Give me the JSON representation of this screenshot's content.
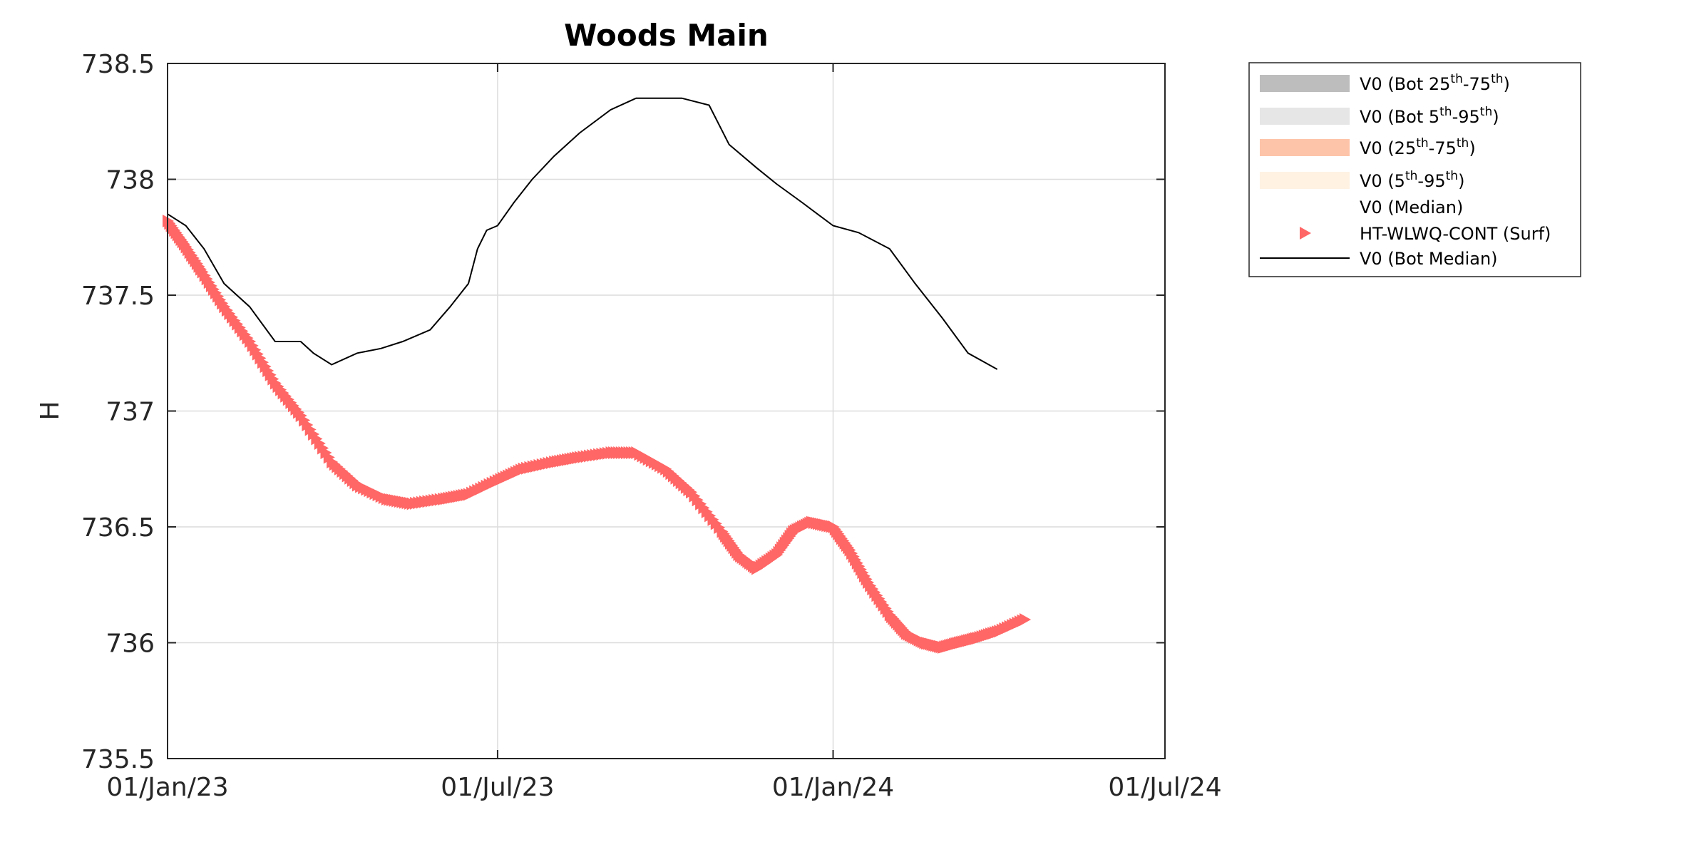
{
  "chart_data": {
    "type": "line",
    "title": "Woods Main",
    "xlabel": "",
    "ylabel": "H",
    "xlim": [
      "2023-01-01",
      "2024-07-01"
    ],
    "ylim": [
      735.5,
      738.5
    ],
    "x_ticks": [
      "01/Jan/23",
      "01/Jul/23",
      "01/Jan/24",
      "01/Jul/24"
    ],
    "y_ticks": [
      "735.5",
      "736",
      "736.5",
      "737",
      "737.5",
      "738",
      "738.5"
    ],
    "grid": true,
    "legend_position": "outside-right",
    "legend": [
      {
        "base": "V0 (Bot 25",
        "sup1": "th",
        "mid": "-75",
        "sup2": "th",
        "end": ")",
        "color": "#bdbdbd",
        "kind": "band"
      },
      {
        "base": "V0 (Bot 5",
        "sup1": "th",
        "mid": "-95",
        "sup2": "th",
        "end": ")",
        "color": "#e6e6e6",
        "kind": "band"
      },
      {
        "base": "V0 (25",
        "sup1": "th",
        "mid": "-75",
        "sup2": "th",
        "end": ")",
        "color": "#fec4a9",
        "kind": "band"
      },
      {
        "base": "V0 (5",
        "sup1": "th",
        "mid": "-95",
        "sup2": "th",
        "end": ")",
        "color": "#fff2e3",
        "kind": "band"
      },
      {
        "base": "V0 (Median)",
        "color": "",
        "kind": "none"
      },
      {
        "base": "HT-WLWQ-CONT (Surf)",
        "color": "#ff6666",
        "kind": "marker"
      },
      {
        "base": "V0 (Bot Median)",
        "color": "#000000",
        "kind": "line"
      }
    ],
    "series": [
      {
        "name": "V0 (Bot Median)",
        "style": "line",
        "color": "#000000",
        "x": [
          "2023-01-01",
          "2023-01-11",
          "2023-01-21",
          "2023-02-01",
          "2023-02-15",
          "2023-03-01",
          "2023-03-15",
          "2023-03-22",
          "2023-04-01",
          "2023-04-15",
          "2023-04-28",
          "2023-05-10",
          "2023-05-25",
          "2023-06-05",
          "2023-06-15",
          "2023-06-20",
          "2023-06-25",
          "2023-07-01",
          "2023-07-10",
          "2023-07-20",
          "2023-08-01",
          "2023-08-15",
          "2023-09-01",
          "2023-09-15",
          "2023-10-01",
          "2023-10-10",
          "2023-10-25",
          "2023-11-05",
          "2023-11-20",
          "2023-12-01",
          "2023-12-15",
          "2024-01-01",
          "2024-01-15",
          "2024-02-01",
          "2024-02-15",
          "2024-03-01",
          "2024-03-15",
          "2024-03-31"
        ],
        "y": [
          737.85,
          737.8,
          737.7,
          737.55,
          737.45,
          737.3,
          737.3,
          737.25,
          737.2,
          737.25,
          737.27,
          737.3,
          737.35,
          737.45,
          737.55,
          737.7,
          737.78,
          737.8,
          737.9,
          738.0,
          738.1,
          738.2,
          738.3,
          738.35,
          738.35,
          738.35,
          738.32,
          738.15,
          738.05,
          737.98,
          737.9,
          737.8,
          737.77,
          737.7,
          737.55,
          737.4,
          737.25,
          737.18
        ]
      },
      {
        "name": "HT-WLWQ-CONT (Surf)",
        "style": "marker",
        "color": "#ff6666",
        "x": [
          "2023-01-01",
          "2023-01-10",
          "2023-01-20",
          "2023-02-01",
          "2023-02-15",
          "2023-03-01",
          "2023-03-15",
          "2023-04-01",
          "2023-04-15",
          "2023-05-01",
          "2023-05-15",
          "2023-06-01",
          "2023-06-15",
          "2023-07-01",
          "2023-07-15",
          "2023-08-01",
          "2023-08-15",
          "2023-09-01",
          "2023-09-15",
          "2023-10-01",
          "2023-10-15",
          "2023-11-01",
          "2023-11-10",
          "2023-11-20",
          "2023-12-01",
          "2023-12-10",
          "2023-12-20",
          "2024-01-01",
          "2024-01-10",
          "2024-01-20",
          "2024-02-01",
          "2024-02-10",
          "2024-02-20",
          "2024-03-01",
          "2024-03-10",
          "2024-03-20",
          "2024-04-01",
          "2024-04-15"
        ],
        "y": [
          737.82,
          737.72,
          737.6,
          737.45,
          737.3,
          737.12,
          736.98,
          736.78,
          736.68,
          736.62,
          736.6,
          736.62,
          736.64,
          736.7,
          736.75,
          736.78,
          736.8,
          736.82,
          736.82,
          736.75,
          736.65,
          736.48,
          736.38,
          736.32,
          736.38,
          736.48,
          736.52,
          736.5,
          736.4,
          736.26,
          736.12,
          736.04,
          736.0,
          735.98,
          736.0,
          736.02,
          736.05,
          736.1
        ]
      }
    ]
  }
}
